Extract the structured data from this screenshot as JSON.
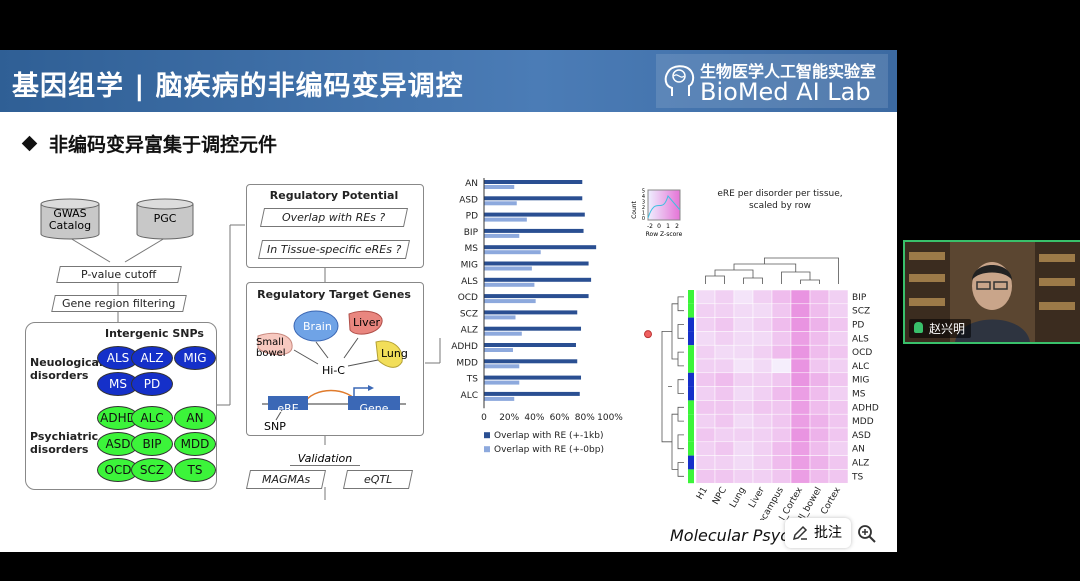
{
  "header": {
    "title": "基因组学 | 脑疾病的非编码变异调控",
    "lab_cn": "生物医学人工智能实验室",
    "lab_en": "BioMed AI Lab"
  },
  "subtitle": "非编码变异富集于调控元件",
  "flow": {
    "gwas": "GWAS Catalog",
    "pgc": "PGC",
    "pvalue": "P-value cutoff",
    "gene_region": "Gene region filtering",
    "intergenic": "Intergenic SNPs",
    "neuro_label": "Neuological disorders",
    "psych_label": "Psychiatric disorders",
    "neuro": [
      "ALS",
      "ALZ",
      "MIG",
      "MS",
      "PD"
    ],
    "psych": [
      "ADHD",
      "ALC",
      "AN",
      "ASD",
      "BIP",
      "MDD",
      "OCD",
      "SCZ",
      "TS"
    ],
    "reg_potential": "Regulatory Potential",
    "overlap_res": "Overlap with REs ?",
    "tissue_eres": "In Tissue-specific eREs ?",
    "reg_targets": "Regulatory Target Genes",
    "brain": "Brain",
    "liver": "Liver",
    "small_bowel": "Small bowel",
    "lung": "Lung",
    "hic": "Hi-C",
    "ere": "eRE",
    "gene": "Gene",
    "snp": "SNP",
    "validation": "Validation",
    "magmas": "MAGMAs",
    "eqtl": "eQTL"
  },
  "chart_data": [
    {
      "type": "bar",
      "categories": [
        "AN",
        "ASD",
        "PD",
        "BIP",
        "MS",
        "MIG",
        "ALS",
        "OCD",
        "SCZ",
        "ALZ",
        "ADHD",
        "MDD",
        "TS",
        "ALC"
      ],
      "series": [
        {
          "name": "Overlap with RE (+-1kb)",
          "values": [
            0.78,
            0.78,
            0.8,
            0.79,
            0.89,
            0.83,
            0.85,
            0.83,
            0.74,
            0.77,
            0.73,
            0.74,
            0.77,
            0.76
          ]
        },
        {
          "name": "Overlap with RE (+-0bp)",
          "values": [
            0.24,
            0.26,
            0.34,
            0.28,
            0.45,
            0.38,
            0.4,
            0.41,
            0.25,
            0.3,
            0.23,
            0.28,
            0.28,
            0.24
          ]
        }
      ],
      "xticks": [
        "0",
        "20%",
        "40%",
        "60%",
        "80%",
        "100%"
      ],
      "xlim": [
        0,
        1
      ],
      "colors": [
        "#2a4f92",
        "#8da9dd"
      ]
    },
    {
      "type": "heatmap",
      "title": "eRE per disorder per tissue, scaled by row",
      "rows": [
        "BIP",
        "SCZ",
        "PD",
        "ALS",
        "OCD",
        "ALC",
        "MIG",
        "MS",
        "ADHD",
        "MDD",
        "ASD",
        "AN",
        "ALZ",
        "TS"
      ],
      "columns": [
        "H1",
        "NPC",
        "Lung",
        "Liver",
        "Hippocampus",
        "fetal_Cortex",
        "Small_bowel",
        "Cortex"
      ],
      "row_groups": [
        "psych",
        "psych",
        "neuro",
        "neuro",
        "psych",
        "psych",
        "neuro",
        "neuro",
        "psych",
        "psych",
        "psych",
        "psych",
        "neuro",
        "psych"
      ],
      "values": [
        [
          0.2,
          0.3,
          0.1,
          0.3,
          0.5,
          0.9,
          0.5,
          0.3
        ],
        [
          0.3,
          0.3,
          0.2,
          0.2,
          0.4,
          0.9,
          0.5,
          0.3
        ],
        [
          0.3,
          0.4,
          0.2,
          0.3,
          0.5,
          0.9,
          0.6,
          0.4
        ],
        [
          0.2,
          0.3,
          0.2,
          0.2,
          0.4,
          0.8,
          0.5,
          0.3
        ],
        [
          0.3,
          0.2,
          0.2,
          0.3,
          0.5,
          0.9,
          0.5,
          0.4
        ],
        [
          0.3,
          0.3,
          0.1,
          0.2,
          0.0,
          0.9,
          0.4,
          0.3
        ],
        [
          0.4,
          0.5,
          0.3,
          0.3,
          0.4,
          0.9,
          0.6,
          0.4
        ],
        [
          0.3,
          0.4,
          0.2,
          0.3,
          0.5,
          0.8,
          0.5,
          0.3
        ],
        [
          0.4,
          0.4,
          0.3,
          0.4,
          0.4,
          0.8,
          0.5,
          0.4
        ],
        [
          0.3,
          0.4,
          0.2,
          0.3,
          0.4,
          0.8,
          0.6,
          0.4
        ],
        [
          0.4,
          0.3,
          0.3,
          0.3,
          0.4,
          0.9,
          0.6,
          0.4
        ],
        [
          0.3,
          0.4,
          0.2,
          0.3,
          0.5,
          0.8,
          0.5,
          0.3
        ],
        [
          0.3,
          0.3,
          0.2,
          0.3,
          0.5,
          0.8,
          0.6,
          0.4
        ],
        [
          0.4,
          0.4,
          0.3,
          0.3,
          0.4,
          0.8,
          0.5,
          0.4
        ]
      ],
      "colorkey_label": "Row Z-score",
      "colorkey_ylabel": "Count",
      "colorkey_xticks": [
        "-2",
        "0",
        "1",
        "2"
      ],
      "colorkey_yticks": [
        "0",
        "1",
        "2",
        "3",
        "4",
        "5"
      ]
    }
  ],
  "citation": "Molecular Psyc",
  "toolbar": {
    "annotate_label": "批注"
  },
  "video": {
    "participant_name": "赵兴明"
  },
  "colors": {
    "banner": "#3c6aa2",
    "neuro_pill": "#1530c9",
    "psych_pill": "#3cf43a",
    "video_border": "#39c06b"
  }
}
